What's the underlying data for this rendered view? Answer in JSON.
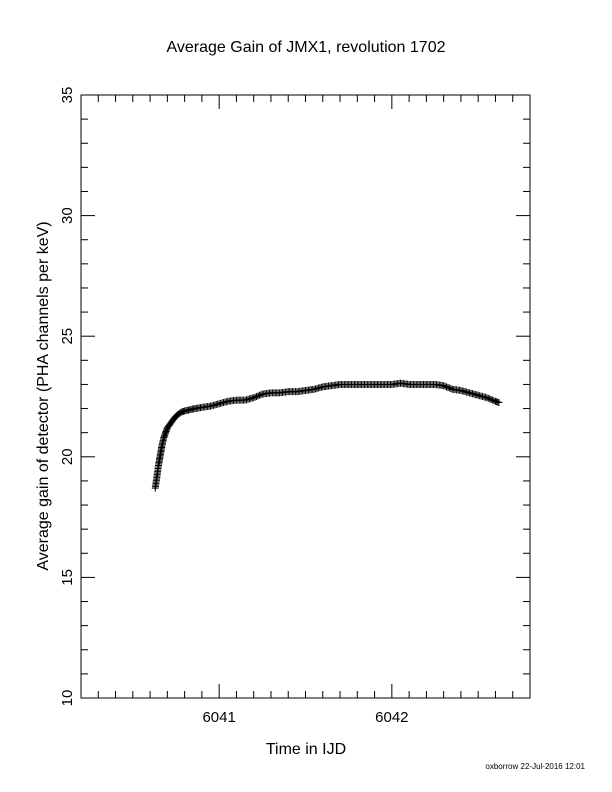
{
  "chart_data": {
    "type": "scatter",
    "title": "Average Gain of JMX1, revolution 1702",
    "xlabel": "Time in IJD",
    "ylabel": "Average gain of detector (PHA channels per keV)",
    "xlim": [
      6040.2,
      6042.8
    ],
    "ylim": [
      10,
      35
    ],
    "xticks": [
      6041,
      6042
    ],
    "yticks": [
      10,
      15,
      20,
      25,
      30,
      35
    ],
    "grid": false,
    "marker": "plus",
    "color": "#000000",
    "x": [
      6040.63,
      6040.64,
      6040.65,
      6040.66,
      6040.67,
      6040.68,
      6040.69,
      6040.7,
      6040.72,
      6040.74,
      6040.76,
      6040.78,
      6040.8,
      6040.83,
      6040.86,
      6040.9,
      6040.95,
      6041.0,
      6041.05,
      6041.1,
      6041.15,
      6041.2,
      6041.25,
      6041.3,
      6041.35,
      6041.4,
      6041.45,
      6041.5,
      6041.55,
      6041.6,
      6041.65,
      6041.7,
      6041.75,
      6041.8,
      6041.85,
      6041.9,
      6041.95,
      6042.0,
      6042.05,
      6042.1,
      6042.15,
      6042.2,
      6042.25,
      6042.3,
      6042.35,
      6042.4,
      6042.45,
      6042.5,
      6042.55,
      6042.6,
      6042.62
    ],
    "y": [
      18.7,
      19.2,
      19.7,
      20.1,
      20.5,
      20.8,
      21.0,
      21.2,
      21.4,
      21.6,
      21.75,
      21.85,
      21.9,
      21.95,
      22.0,
      22.05,
      22.1,
      22.2,
      22.3,
      22.35,
      22.35,
      22.45,
      22.6,
      22.65,
      22.65,
      22.7,
      22.7,
      22.75,
      22.8,
      22.9,
      22.95,
      23.0,
      23.0,
      23.0,
      23.0,
      23.0,
      23.0,
      23.0,
      23.05,
      23.0,
      23.0,
      23.0,
      23.0,
      22.95,
      22.8,
      22.75,
      22.65,
      22.55,
      22.45,
      22.3,
      22.25
    ]
  },
  "footer": "oxborrow 22-Jul-2016 12:01"
}
